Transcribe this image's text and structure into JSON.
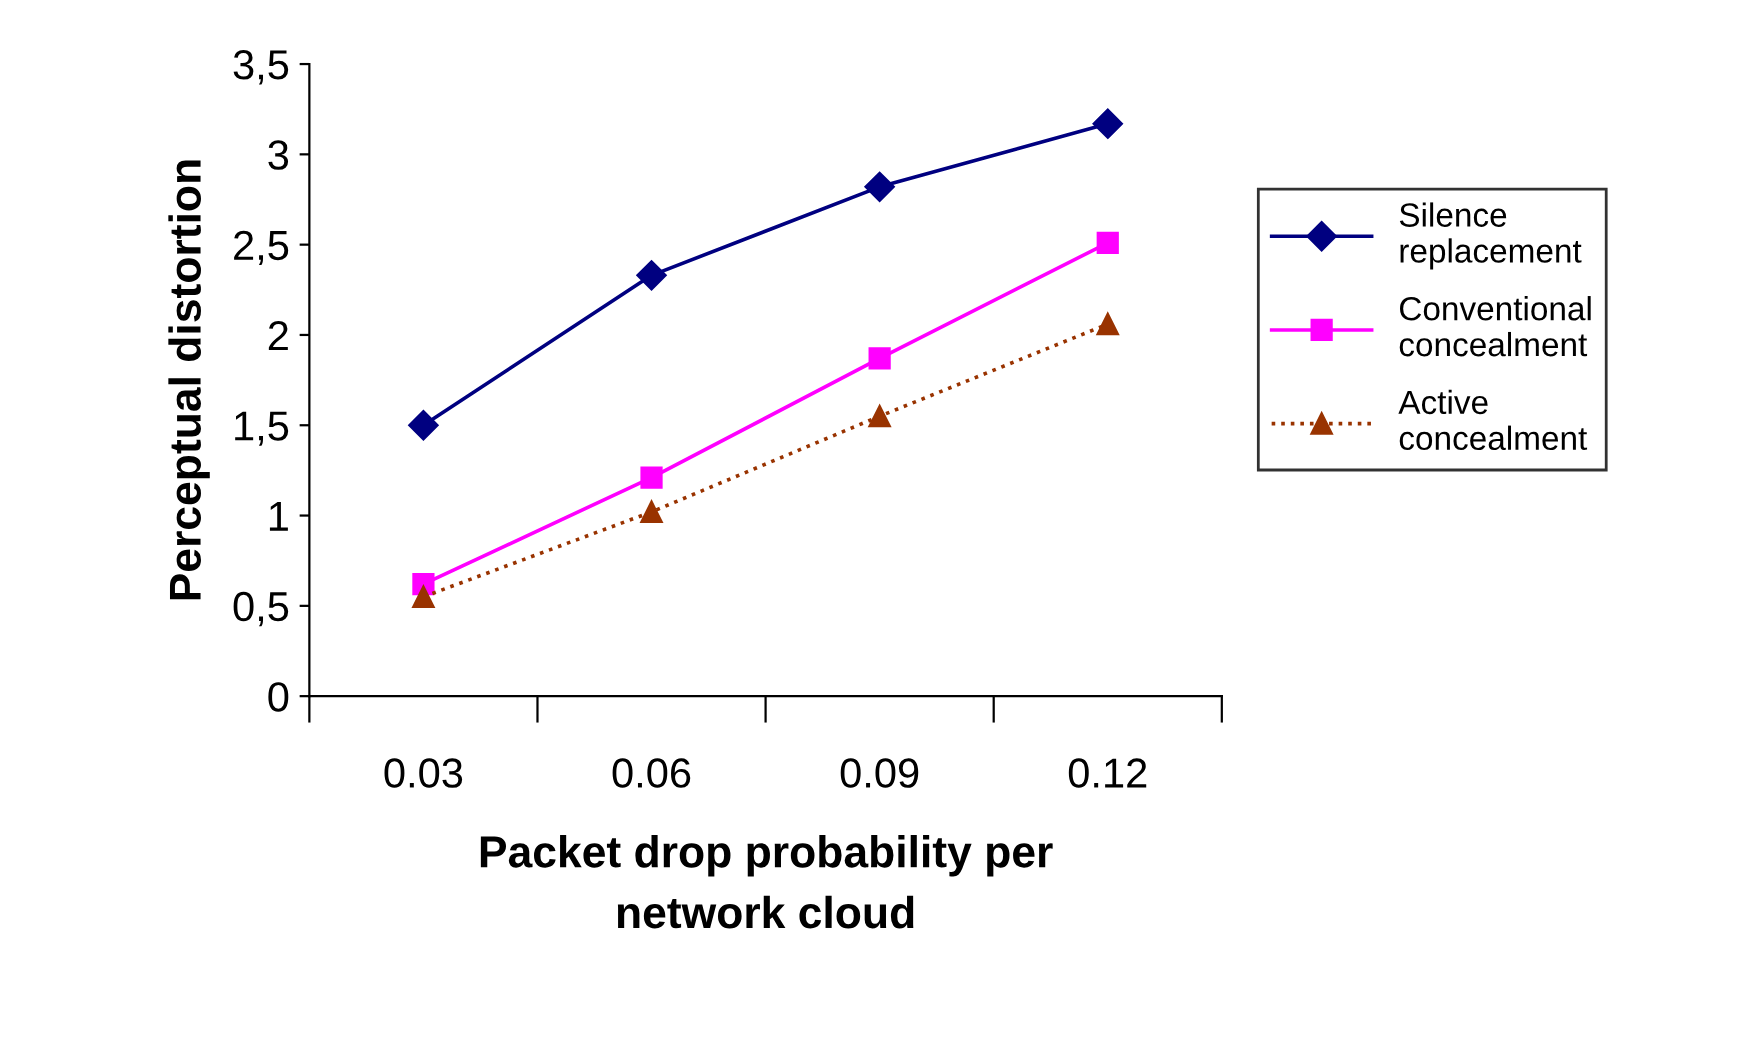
{
  "chart_data": {
    "type": "line",
    "xlabel": "Packet drop probability per\nnetwork cloud",
    "ylabel": "Perceptual distortion",
    "categories": [
      "0.03",
      "0.06",
      "0.09",
      "0.12"
    ],
    "series": [
      {
        "name": "Silence\nreplacement",
        "color": "#000080",
        "marker": "diamond",
        "line_style": "solid",
        "values": [
          1.5,
          2.33,
          2.82,
          3.17
        ]
      },
      {
        "name": "Conventional\nconcealment",
        "color": "#ff00ff",
        "marker": "square",
        "line_style": "solid",
        "values": [
          0.62,
          1.21,
          1.87,
          2.51
        ]
      },
      {
        "name": "Active\nconcealment",
        "color": "#993300",
        "marker": "triangle",
        "line_style": "dotted",
        "values": [
          0.55,
          1.02,
          1.55,
          2.06
        ]
      }
    ],
    "ylim": [
      0,
      3.5
    ],
    "yticks": [
      0,
      {
        "value": 0.5,
        "label": "0,5"
      },
      1,
      {
        "value": 1.5,
        "label": "1,5"
      },
      2,
      {
        "value": 2.5,
        "label": "2,5"
      },
      3,
      {
        "value": 3.5,
        "label": "3,5"
      }
    ],
    "grid": false,
    "legend": "right"
  }
}
